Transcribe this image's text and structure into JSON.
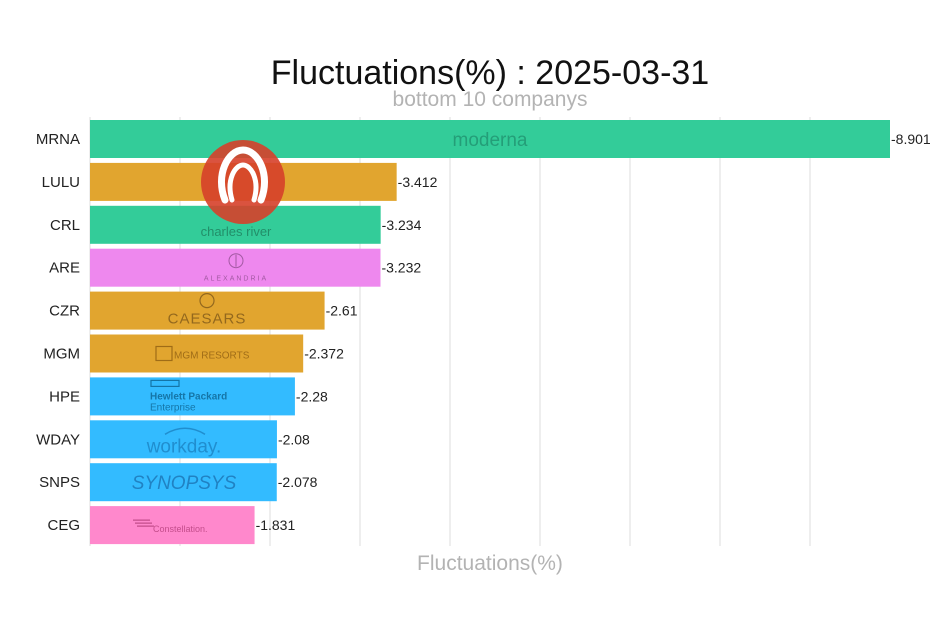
{
  "chart_data": {
    "type": "bar",
    "orientation": "horizontal",
    "title": "Fluctuations(%) : 2025-03-31",
    "subtitle": "bottom 10 companys",
    "xlabel": "Fluctuations(%)",
    "ylabel": "",
    "grid": true,
    "legend": "none",
    "xlim": [
      0,
      8.901
    ],
    "categories": [
      "MRNA",
      "LULU",
      "CRL",
      "ARE",
      "CZR",
      "MGM",
      "HPE",
      "WDAY",
      "SNPS",
      "CEG"
    ],
    "values": [
      -8.901,
      -3.412,
      -3.234,
      -3.232,
      -2.61,
      -2.372,
      -2.28,
      -2.08,
      -2.078,
      -1.831
    ],
    "value_labels": [
      "-8.901",
      "-3.412",
      "-3.234",
      "-3.232",
      "-2.61",
      "-2.372",
      "-2.28",
      "-2.08",
      "-2.078",
      "-1.831"
    ],
    "colors": [
      "#33cc99",
      "#e1a52f",
      "#33cc99",
      "#ee88ee",
      "#e1a52f",
      "#e1a52f",
      "#33bbff",
      "#33bbff",
      "#33bbff",
      "#ff88cc"
    ],
    "logos": [
      {
        "name": "moderna-logo",
        "text": "moderna"
      },
      {
        "name": "lululemon-logo",
        "text": ""
      },
      {
        "name": "charles-river-logo",
        "text": "charles river"
      },
      {
        "name": "alexandria-logo",
        "text": "ALEXANDRIA"
      },
      {
        "name": "caesars-logo",
        "text": "CAESARS"
      },
      {
        "name": "mgm-resorts-logo",
        "text": "MGM RESORTS"
      },
      {
        "name": "hewlett-packard-enterprise-logo",
        "text": "Hewlett Packard Enterprise"
      },
      {
        "name": "workday-logo",
        "text": "workday."
      },
      {
        "name": "synopsys-logo",
        "text": "SYNOPSYS"
      },
      {
        "name": "constellation-logo",
        "text": "Constellation."
      }
    ]
  }
}
